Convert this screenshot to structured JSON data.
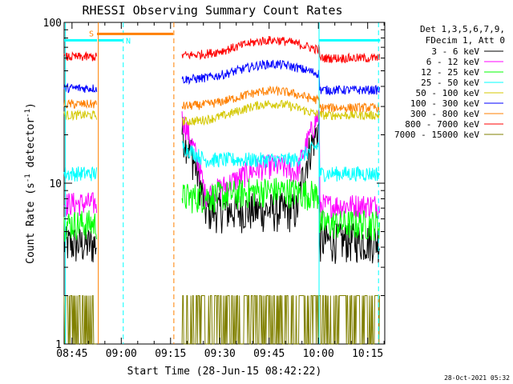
{
  "chart_data": {
    "type": "line",
    "title": "RHESSI Observing Summary Count Rates",
    "xlabel": "Start Time (28-Jun-15 08:42:22)",
    "ylabel_prefix": "Count Rate (s",
    "ylabel_sup": "-1",
    "ylabel_suffix": " detector",
    "ylabel_end": ")",
    "footer_date": "28-Oct-2021 05:32",
    "yscale": "log",
    "ylim": [
      1,
      100
    ],
    "xlim_minutes": [
      -2.4,
      95.2
    ],
    "x_ticks": [
      {
        "label": "08:45",
        "minute": 0
      },
      {
        "label": "09:00",
        "minute": 15
      },
      {
        "label": "09:15",
        "minute": 30
      },
      {
        "label": "09:30",
        "minute": 45
      },
      {
        "label": "09:45",
        "minute": 60
      },
      {
        "label": "10:00",
        "minute": 75
      },
      {
        "label": "10:15",
        "minute": 90
      }
    ],
    "y_ticks": [
      {
        "label": "1",
        "value": 1
      },
      {
        "label": "10",
        "value": 10
      },
      {
        "label": "100",
        "value": 100
      }
    ],
    "legend_header": [
      "Det 1,3,5,6,7,9,",
      "FDecim 1, Att 0"
    ],
    "series": [
      {
        "name": "3 - 6 keV",
        "color": "#000000",
        "pre": 4.2,
        "base": 6.8,
        "post": 4.4,
        "spike": 21,
        "noise": 0.13
      },
      {
        "name": "6 - 12 keV",
        "color": "#ff00ff",
        "pre": 7.5,
        "base": 8.0,
        "post": 7.3,
        "spike": 25,
        "bump": 1.6,
        "noise": 0.08
      },
      {
        "name": "12 - 25 keV",
        "color": "#00ff00",
        "pre": 5.6,
        "base": 8.2,
        "post": 5.6,
        "bump": 1.1,
        "noise": 0.1
      },
      {
        "name": "25 - 50 keV",
        "color": "#00ffff",
        "pre": 11.5,
        "base": 14.0,
        "post": 11.5,
        "spike": 17,
        "noise": 0.05
      },
      {
        "name": "50 - 100 keV",
        "color": "#d4c800",
        "pre": 26.5,
        "base": 24.0,
        "post": 26.5,
        "bump": 1.3,
        "noise": 0.03
      },
      {
        "name": "100 - 300 keV",
        "color": "#0000ff",
        "pre": 39.0,
        "base": 44.0,
        "post": 38.0,
        "bump": 1.25,
        "noise": 0.03
      },
      {
        "name": "300 - 800 keV",
        "color": "#ff8000",
        "pre": 31.0,
        "base": 30.0,
        "post": 29.5,
        "bump": 1.25,
        "noise": 0.03
      },
      {
        "name": "800 - 7000 keV",
        "color": "#ff0000",
        "pre": 61.0,
        "base": 62.0,
        "post": 60.0,
        "bump": 1.25,
        "noise": 0.03
      },
      {
        "name": "7000 - 15000 keV",
        "color": "#808000",
        "pre": 1.4,
        "base": 1.4,
        "post": 1.4,
        "noise": 0.0
      }
    ],
    "intervals": [
      {
        "type": "day",
        "start": -2.4,
        "end": 7.6
      },
      {
        "type": "night",
        "start": 7.6,
        "end": 30.8
      },
      {
        "type": "day",
        "start": 33.5,
        "end": 93.8
      }
    ],
    "saa_bar": {
      "label": "S",
      "start": 7.6,
      "end": 30.8,
      "color": "#ff8000"
    },
    "night_bar": {
      "label": "N",
      "start": 15.4,
      "end": 30.8
    },
    "day_bars": [
      {
        "start": -2.4,
        "end": 7.6
      },
      {
        "start": 75.2,
        "end": 93.8
      }
    ],
    "vlines": [
      {
        "minute": -2.0,
        "style": "solid",
        "color": "#00ffff"
      },
      {
        "minute": 8.0,
        "style": "solid",
        "color": "#ff8000"
      },
      {
        "minute": 15.6,
        "style": "dashed",
        "color": "#00ffff"
      },
      {
        "minute": 31.0,
        "style": "dashed",
        "color": "#ff8000"
      },
      {
        "minute": 75.2,
        "style": "solid",
        "color": "#00ffff"
      },
      {
        "minute": 93.3,
        "style": "dashed",
        "color": "#00ffff"
      }
    ]
  }
}
